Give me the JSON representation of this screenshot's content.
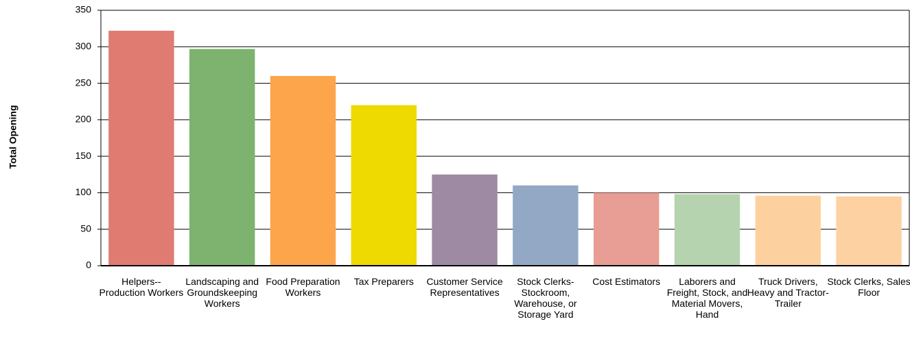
{
  "chart_data": {
    "type": "bar",
    "y_label": "Total Opening",
    "categories": [
      "Helpers--Production Workers",
      "Landscaping and Groundskeeping Workers",
      "Food Preparation Workers",
      "Tax Preparers",
      "Customer Service Representatives",
      "Stock Clerks-Stockroom, Warehouse, or Storage Yard",
      "Cost Estimators",
      "Laborers and Freight, Stock, and Material Movers, Hand",
      "Truck Drivers, Heavy and Tractor-Trailer",
      "Stock Clerks, Sales Floor"
    ],
    "values": [
      322,
      297,
      260,
      220,
      125,
      110,
      100,
      98,
      96,
      95
    ],
    "colors": [
      "#e07b72",
      "#7db36f",
      "#fca54b",
      "#eed900",
      "#9e8aa3",
      "#92a8c5",
      "#e89e94",
      "#b4d3ae",
      "#fdd19f",
      "#fdd1a2"
    ],
    "ylim": [
      0,
      350
    ],
    "yticks": [
      0,
      50,
      100,
      150,
      200,
      250,
      300,
      350
    ],
    "grid": true
  }
}
